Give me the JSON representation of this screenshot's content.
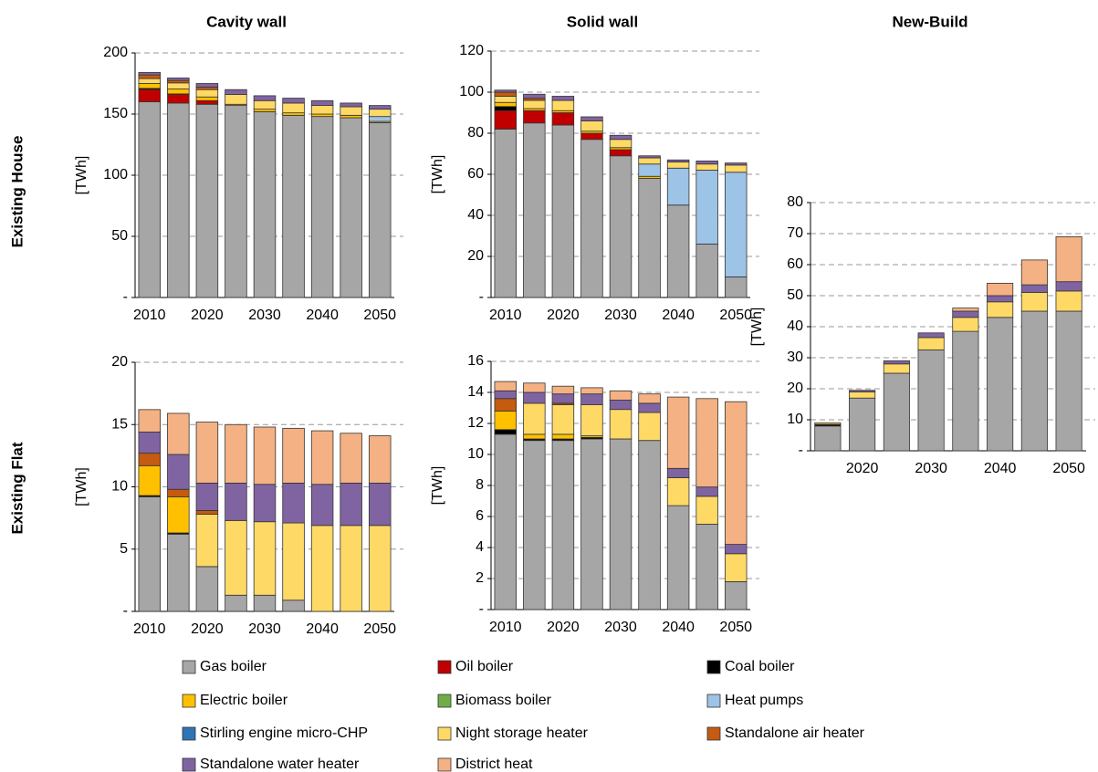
{
  "row_labels": [
    "Existing House",
    "Existing Flat"
  ],
  "chart_data": [
    {
      "type": "bar",
      "stacked": true,
      "title": "Cavity wall",
      "ylabel": "[TWh]",
      "grid": true,
      "categories": [
        "2010",
        null,
        "2020",
        null,
        "2030",
        null,
        "2040",
        null,
        "2050"
      ],
      "ylim": [
        0,
        200
      ],
      "yticks": [
        {
          "value": 0,
          "label": "-"
        },
        50,
        100,
        150,
        200
      ],
      "series": [
        {
          "name": "Gas boiler",
          "color": "#a6a6a6",
          "values": [
            160,
            159,
            158,
            157,
            152,
            149,
            148,
            147,
            143
          ]
        },
        {
          "name": "Oil boiler",
          "color": "#c00000",
          "values": [
            10,
            7,
            3,
            0,
            0,
            0,
            0,
            0,
            0
          ]
        },
        {
          "name": "Coal boiler",
          "color": "#000000",
          "values": [
            1,
            0.5,
            0,
            0,
            0,
            0,
            0,
            0,
            0
          ]
        },
        {
          "name": "Electric boiler",
          "color": "#ffc000",
          "values": [
            4,
            4,
            3,
            1,
            2,
            2,
            2,
            2,
            1
          ]
        },
        {
          "name": "Biomass boiler",
          "color": "#70ad47",
          "values": [
            0,
            0,
            0,
            0,
            0,
            0,
            0,
            0,
            0
          ]
        },
        {
          "name": "Heat pumps",
          "color": "#9dc3e6",
          "values": [
            0,
            0,
            0,
            0,
            0,
            0,
            0,
            0,
            4
          ]
        },
        {
          "name": "Stirling engine micro-CHP",
          "color": "#2e75b6",
          "values": [
            0,
            0,
            0,
            0,
            0,
            0,
            0,
            0,
            0
          ]
        },
        {
          "name": "Night storage heater",
          "color": "#ffd966",
          "values": [
            4,
            5,
            6,
            8,
            7,
            8,
            7,
            7,
            6
          ]
        },
        {
          "name": "Standalone air heater",
          "color": "#c55a11",
          "values": [
            3,
            2,
            2,
            0,
            0,
            0,
            0,
            0,
            0
          ]
        },
        {
          "name": "Standalone water heater",
          "color": "#8064a2",
          "values": [
            2,
            2,
            3,
            4,
            4,
            4,
            4,
            3,
            3
          ]
        },
        {
          "name": "District heat",
          "color": "#f4b183",
          "values": [
            0,
            0,
            0,
            0,
            0,
            0,
            0,
            0,
            0
          ]
        }
      ]
    },
    {
      "type": "bar",
      "stacked": true,
      "title": "Solid wall",
      "ylabel": "[TWh]",
      "grid": true,
      "categories": [
        "2010",
        null,
        "2020",
        null,
        "2030",
        null,
        "2040",
        null,
        "2050"
      ],
      "ylim": [
        0,
        120
      ],
      "yticks": [
        {
          "value": 0,
          "label": "-"
        },
        20,
        40,
        60,
        80,
        100,
        120
      ],
      "series": [
        {
          "name": "Gas boiler",
          "color": "#a6a6a6",
          "values": [
            82,
            85,
            84,
            77,
            69,
            58,
            45,
            26,
            10
          ]
        },
        {
          "name": "Oil boiler",
          "color": "#c00000",
          "values": [
            9,
            6,
            6,
            3,
            3,
            0,
            0,
            0,
            0
          ]
        },
        {
          "name": "Coal boiler",
          "color": "#000000",
          "values": [
            2,
            0,
            0,
            0,
            0,
            0,
            0,
            0,
            0
          ]
        },
        {
          "name": "Electric boiler",
          "color": "#ffc000",
          "values": [
            2,
            1,
            1,
            1,
            1,
            1,
            0,
            0,
            0
          ]
        },
        {
          "name": "Biomass boiler",
          "color": "#70ad47",
          "values": [
            0,
            0,
            0,
            0,
            0,
            0,
            0,
            0,
            0
          ]
        },
        {
          "name": "Heat pumps",
          "color": "#9dc3e6",
          "values": [
            0,
            0,
            0,
            0,
            0,
            6,
            18,
            36,
            51
          ]
        },
        {
          "name": "Stirling engine micro-CHP",
          "color": "#2e75b6",
          "values": [
            0,
            0,
            0,
            0,
            0,
            0,
            0,
            0,
            0
          ]
        },
        {
          "name": "Night storage heater",
          "color": "#ffd966",
          "values": [
            3,
            4,
            5,
            5,
            4,
            3,
            3,
            3,
            3.5
          ]
        },
        {
          "name": "Standalone air heater",
          "color": "#c55a11",
          "values": [
            2,
            1,
            0,
            0,
            0,
            0,
            0,
            0,
            0
          ]
        },
        {
          "name": "Standalone water heater",
          "color": "#8064a2",
          "values": [
            1,
            2,
            2,
            2,
            2,
            1,
            1,
            1.5,
            1
          ]
        },
        {
          "name": "District heat",
          "color": "#f4b183",
          "values": [
            0,
            0,
            0,
            0,
            0,
            0,
            0,
            0,
            0
          ]
        }
      ]
    },
    {
      "type": "bar",
      "stacked": true,
      "title": "New-Build",
      "ylabel": "[TWh]",
      "grid": true,
      "categories": [
        null,
        "2020",
        null,
        "2030",
        null,
        "2040",
        null,
        "2050"
      ],
      "ylim": [
        0,
        80
      ],
      "yticks": [
        {
          "value": 0,
          "label": "-"
        },
        10,
        20,
        30,
        40,
        50,
        60,
        70,
        80
      ],
      "series": [
        {
          "name": "Gas boiler",
          "color": "#a6a6a6",
          "values": [
            8,
            17,
            25,
            32.5,
            38.5,
            43,
            45,
            45
          ]
        },
        {
          "name": "Oil boiler",
          "color": "#c00000",
          "values": [
            0,
            0,
            0,
            0,
            0,
            0,
            0,
            0
          ]
        },
        {
          "name": "Coal boiler",
          "color": "#000000",
          "values": [
            0.5,
            0,
            0,
            0,
            0,
            0,
            0,
            0
          ]
        },
        {
          "name": "Electric boiler",
          "color": "#ffc000",
          "values": [
            0,
            0,
            0,
            0,
            0,
            0,
            0,
            0
          ]
        },
        {
          "name": "Biomass boiler",
          "color": "#70ad47",
          "values": [
            0,
            0,
            0,
            0,
            0,
            0,
            0,
            0
          ]
        },
        {
          "name": "Heat pumps",
          "color": "#9dc3e6",
          "values": [
            0,
            0,
            0,
            0,
            0,
            0,
            0,
            0
          ]
        },
        {
          "name": "Stirling engine micro-CHP",
          "color": "#2e75b6",
          "values": [
            0,
            0,
            0,
            0,
            0,
            0,
            0,
            0
          ]
        },
        {
          "name": "Night storage heater",
          "color": "#ffd966",
          "values": [
            0.5,
            2,
            3,
            4,
            4.5,
            5,
            6,
            6.5
          ]
        },
        {
          "name": "Standalone air heater",
          "color": "#c55a11",
          "values": [
            0,
            0,
            0,
            0,
            0,
            0,
            0,
            0
          ]
        },
        {
          "name": "Standalone water heater",
          "color": "#8064a2",
          "values": [
            0,
            0.5,
            1,
            1.5,
            2,
            2,
            2.5,
            3
          ]
        },
        {
          "name": "District heat",
          "color": "#f4b183",
          "values": [
            0,
            0,
            0,
            0,
            1,
            4,
            8,
            14.5
          ]
        }
      ]
    },
    {
      "type": "bar",
      "stacked": true,
      "ylabel": "[TWh]",
      "grid": true,
      "categories": [
        "2010",
        null,
        "2020",
        null,
        "2030",
        null,
        "2040",
        null,
        "2050"
      ],
      "ylim": [
        0,
        20
      ],
      "yticks": [
        {
          "value": 0,
          "label": "-"
        },
        5,
        10,
        15,
        20
      ],
      "series": [
        {
          "name": "Gas boiler",
          "color": "#a6a6a6",
          "values": [
            9.2,
            6.2,
            3.6,
            1.3,
            1.3,
            0.9,
            0,
            0,
            0
          ]
        },
        {
          "name": "Oil boiler",
          "color": "#c00000",
          "values": [
            0,
            0,
            0,
            0,
            0,
            0,
            0,
            0,
            0
          ]
        },
        {
          "name": "Coal boiler",
          "color": "#000000",
          "values": [
            0.1,
            0.1,
            0,
            0,
            0,
            0,
            0,
            0,
            0
          ]
        },
        {
          "name": "Electric boiler",
          "color": "#ffc000",
          "values": [
            2.4,
            2.9,
            0,
            0,
            0,
            0,
            0,
            0,
            0
          ]
        },
        {
          "name": "Biomass boiler",
          "color": "#70ad47",
          "values": [
            0,
            0,
            0,
            0,
            0,
            0,
            0,
            0,
            0
          ]
        },
        {
          "name": "Heat pumps",
          "color": "#9dc3e6",
          "values": [
            0,
            0,
            0,
            0,
            0,
            0,
            0,
            0,
            0
          ]
        },
        {
          "name": "Stirling engine micro-CHP",
          "color": "#2e75b6",
          "values": [
            0,
            0,
            0,
            0,
            0,
            0,
            0,
            0,
            0
          ]
        },
        {
          "name": "Night storage heater",
          "color": "#ffd966",
          "values": [
            0,
            0,
            4.2,
            6.0,
            5.9,
            6.2,
            6.9,
            6.9,
            6.9
          ]
        },
        {
          "name": "Standalone air heater",
          "color": "#c55a11",
          "values": [
            1.0,
            0.6,
            0.3,
            0,
            0,
            0,
            0,
            0,
            0
          ]
        },
        {
          "name": "Standalone water heater",
          "color": "#8064a2",
          "values": [
            1.7,
            2.8,
            2.2,
            3.0,
            3.0,
            3.2,
            3.3,
            3.4,
            3.4
          ]
        },
        {
          "name": "District heat",
          "color": "#f4b183",
          "values": [
            1.8,
            3.3,
            4.9,
            4.7,
            4.6,
            4.4,
            4.3,
            4.0,
            3.8
          ]
        }
      ]
    },
    {
      "type": "bar",
      "stacked": true,
      "ylabel": "[TWh]",
      "grid": true,
      "categories": [
        "2010",
        null,
        "2020",
        null,
        "2030",
        null,
        "2040",
        null,
        "2050"
      ],
      "ylim": [
        0,
        16
      ],
      "yticks": [
        {
          "value": 0,
          "label": "-"
        },
        2,
        4,
        6,
        8,
        10,
        12,
        14,
        16
      ],
      "series": [
        {
          "name": "Gas boiler",
          "color": "#a6a6a6",
          "values": [
            11.3,
            10.9,
            10.9,
            11.0,
            11.0,
            10.9,
            6.7,
            5.5,
            1.8
          ]
        },
        {
          "name": "Oil boiler",
          "color": "#c00000",
          "values": [
            0,
            0,
            0,
            0,
            0,
            0,
            0,
            0,
            0
          ]
        },
        {
          "name": "Coal boiler",
          "color": "#000000",
          "values": [
            0.3,
            0.1,
            0.1,
            0.1,
            0,
            0,
            0,
            0,
            0
          ]
        },
        {
          "name": "Electric boiler",
          "color": "#ffc000",
          "values": [
            1.2,
            0.3,
            0.3,
            0.1,
            0,
            0,
            0,
            0,
            0
          ]
        },
        {
          "name": "Biomass boiler",
          "color": "#70ad47",
          "values": [
            0,
            0,
            0,
            0,
            0,
            0,
            0,
            0,
            0
          ]
        },
        {
          "name": "Heat pumps",
          "color": "#9dc3e6",
          "values": [
            0,
            0,
            0,
            0,
            0,
            0,
            0,
            0,
            0
          ]
        },
        {
          "name": "Stirling engine micro-CHP",
          "color": "#2e75b6",
          "values": [
            0,
            0,
            0,
            0,
            0,
            0,
            0,
            0,
            0
          ]
        },
        {
          "name": "Night storage heater",
          "color": "#ffd966",
          "values": [
            0,
            2.0,
            1.9,
            2.0,
            1.9,
            1.8,
            1.8,
            1.8,
            1.8
          ]
        },
        {
          "name": "Standalone air heater",
          "color": "#c55a11",
          "values": [
            0.8,
            0,
            0.1,
            0,
            0,
            0,
            0,
            0,
            0
          ]
        },
        {
          "name": "Standalone water heater",
          "color": "#8064a2",
          "values": [
            0.5,
            0.7,
            0.6,
            0.7,
            0.6,
            0.6,
            0.6,
            0.6,
            0.6
          ]
        },
        {
          "name": "District heat",
          "color": "#f4b183",
          "values": [
            0.6,
            0.6,
            0.5,
            0.4,
            0.6,
            0.6,
            4.6,
            5.7,
            9.2
          ]
        }
      ]
    }
  ]
}
